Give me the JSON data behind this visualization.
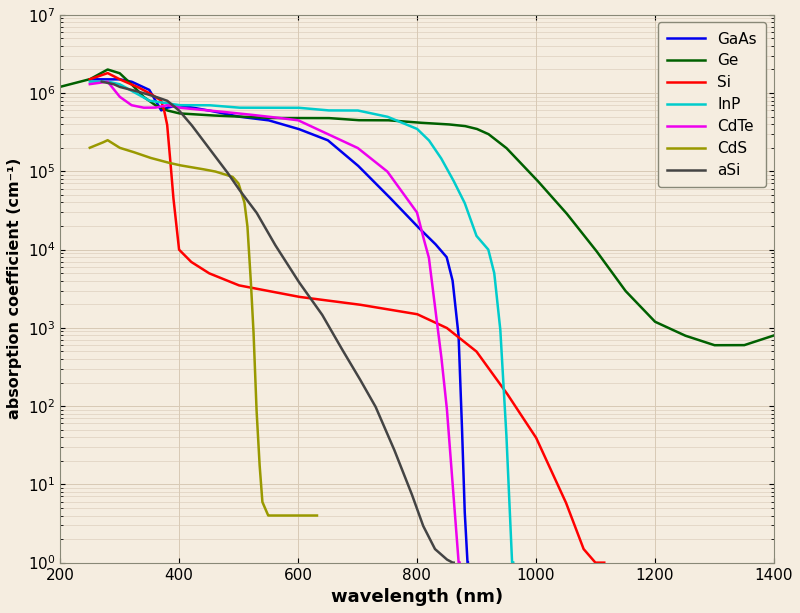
{
  "xlabel": "wavelength (nm)",
  "ylabel": "absorption coefficient (cm⁻¹)",
  "xlim": [
    200,
    1400
  ],
  "ylim": [
    1,
    10000000.0
  ],
  "background_color": "#f5ede0",
  "grid_color": "#d8c9b5",
  "line_colors": {
    "GaAs": "#0000ee",
    "Ge": "#006000",
    "Si": "#ff0000",
    "InP": "#00cccc",
    "CdTe": "#ee00ee",
    "CdS": "#999900",
    "aSi": "#444444"
  },
  "linewidth": 1.8
}
